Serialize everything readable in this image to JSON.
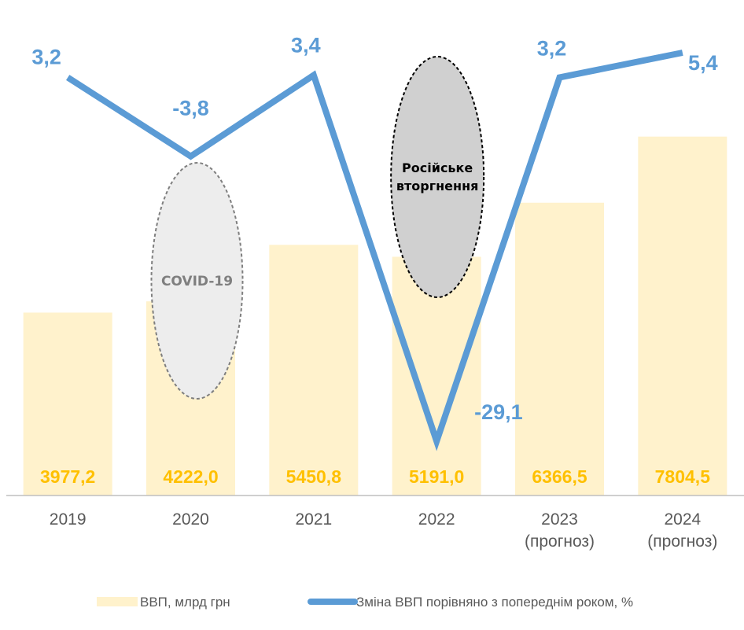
{
  "chart_data": {
    "type": "bar",
    "categories": [
      [
        "2019"
      ],
      [
        "2020"
      ],
      [
        "2021"
      ],
      [
        "2022"
      ],
      [
        "2023",
        "(прогноз)"
      ],
      [
        "2024",
        "(прогноз)"
      ]
    ],
    "bar_series": {
      "name": "ВВП, млрд грн",
      "values": [
        3977.2,
        4222.0,
        5450.8,
        5191.0,
        6366.5,
        7804.5
      ],
      "labels": [
        "3977,2",
        "4222,0",
        "5450,8",
        "5191,0",
        "6366,5",
        "7804,5"
      ],
      "color": "#FFF2CC",
      "label_color": "#FFC000"
    },
    "line_series": {
      "name": "Зміна ВВП порівняно з попереднім роком, %",
      "values": [
        3.2,
        -3.8,
        3.4,
        -29.1,
        3.2,
        5.4
      ],
      "labels": [
        "3,2",
        "-3,8",
        "3,4",
        "-29,1",
        "3,2",
        "5,4"
      ],
      "color": "#5B9BD5"
    },
    "annotations": [
      {
        "text": [
          "COVID-19"
        ],
        "category_index": 1,
        "fill": "#EDEDED",
        "stroke": "#7F7F7F",
        "text_color": "#7F7F7F"
      },
      {
        "text": [
          "Російське",
          "вторгнення"
        ],
        "category_index": 3,
        "fill": "#D0D0D0",
        "stroke": "#000000",
        "text_color": "#000000"
      }
    ],
    "legend_position": "bottom",
    "grid": false
  }
}
